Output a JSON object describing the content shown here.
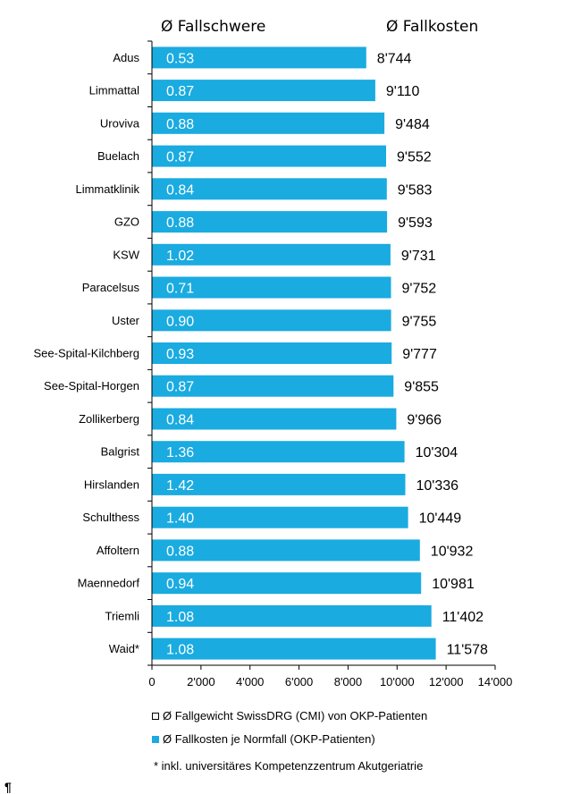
{
  "headers": {
    "fallschwere": "Ø Fallschwere",
    "fallkosten": "Ø Fallkosten"
  },
  "chart_data": {
    "type": "bar",
    "orientation": "horizontal",
    "categories": [
      "Adus",
      "Limmattal",
      "Uroviva",
      "Buelach",
      "Limmatklinik",
      "GZO",
      "KSW",
      "Paracelsus",
      "Uster",
      "See-Spital-Kilchberg",
      "See-Spital-Horgen",
      "Zollikerberg",
      "Balgrist",
      "Hirslanden",
      "Schulthess",
      "Affoltern",
      "Maennedorf",
      "Triemli",
      "Waid*"
    ],
    "series": [
      {
        "name": "Ø Fallkosten je Normfall (OKP-Patienten)",
        "values": [
          8744,
          9110,
          9484,
          9552,
          9583,
          9593,
          9731,
          9752,
          9755,
          9777,
          9855,
          9966,
          10304,
          10336,
          10449,
          10932,
          10981,
          11402,
          11578
        ],
        "value_labels": [
          "8'744",
          "9'110",
          "9'484",
          "9'552",
          "9'583",
          "9'593",
          "9'731",
          "9'752",
          "9'755",
          "9'777",
          "9'855",
          "9'966",
          "10'304",
          "10'336",
          "10'449",
          "10'932",
          "10'981",
          "11'402",
          "11'578"
        ],
        "color": "#1aabe0"
      },
      {
        "name": "Ø Fallgewicht SwissDRG (CMI) von OKP-Patienten",
        "values": [
          0.53,
          0.87,
          0.88,
          0.87,
          0.84,
          0.88,
          1.02,
          0.71,
          0.9,
          0.93,
          0.87,
          0.84,
          1.36,
          1.42,
          1.4,
          0.88,
          0.94,
          1.08,
          1.08
        ],
        "value_labels": [
          "0.53",
          "0.87",
          "0.88",
          "0.87",
          "0.84",
          "0.88",
          "1.02",
          "0.71",
          "0.90",
          "0.93",
          "0.87",
          "0.84",
          "1.36",
          "1.42",
          "1.40",
          "0.88",
          "0.94",
          "1.08",
          "1.08"
        ]
      }
    ],
    "xlim": [
      0,
      14000
    ],
    "xticks": [
      0,
      2000,
      4000,
      6000,
      8000,
      10000,
      12000,
      14000
    ],
    "xtick_labels": [
      "0",
      "2'000",
      "4'000",
      "6'000",
      "8'000",
      "10'000",
      "12'000",
      "14'000"
    ],
    "grid": false
  },
  "legend": {
    "cmi_label": "Ø Fallgewicht SwissDRG (CMI) von OKP-Patienten",
    "cost_label": "Ø Fallkosten je Normfall (OKP-Patienten)"
  },
  "footnote": "*  inkl. universitäres  Kompetenzzentrum Akutgeriatrie",
  "pilcrow": "¶"
}
